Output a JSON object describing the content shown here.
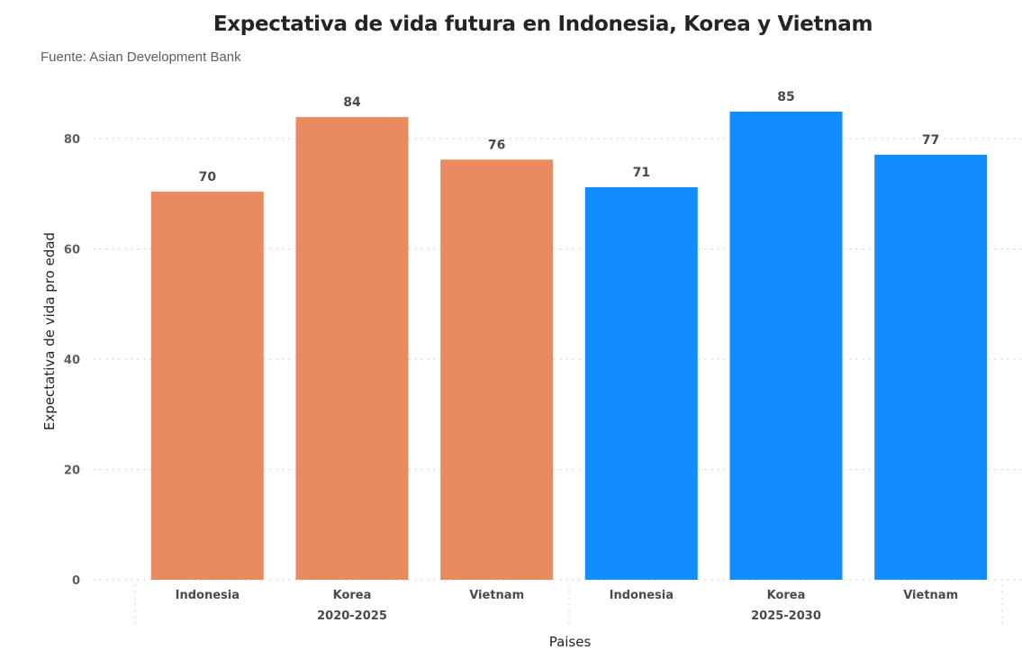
{
  "chart_data": {
    "type": "bar",
    "title": "Expectativa de vida futura en Indonesia, Korea y Vietnam",
    "subtitle": "Fuente: Asian Development Bank",
    "xlabel": "Paises",
    "ylabel": "Expectativa de vida pro edad",
    "ylim": [
      0,
      85
    ],
    "yticks": [
      0,
      20,
      40,
      60,
      80
    ],
    "grid": true,
    "groups": [
      {
        "name": "2020-2025",
        "color": "#E98A61",
        "categories": [
          "Indonesia",
          "Korea",
          "Vietnam"
        ],
        "values": [
          70.4,
          83.9,
          76.2
        ],
        "labels": [
          "70",
          "84",
          "76"
        ]
      },
      {
        "name": "2025-2030",
        "color": "#118DFF",
        "categories": [
          "Indonesia",
          "Korea",
          "Vietnam"
        ],
        "values": [
          71.2,
          84.9,
          77.1
        ],
        "labels": [
          "71",
          "85",
          "77"
        ]
      }
    ]
  }
}
